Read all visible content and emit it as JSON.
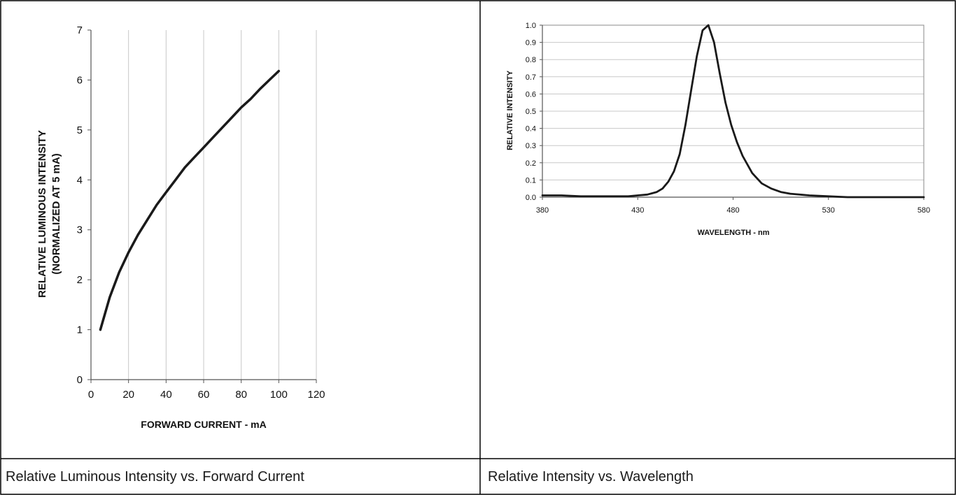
{
  "captions": {
    "left": "Relative Luminous Intensity vs. Forward Current",
    "right": "Relative Intensity vs. Wavelength"
  },
  "chart_data": [
    {
      "type": "line",
      "xlabel": "FORWARD CURRENT - mA",
      "ylabel_line1": "RELATIVE LUMINOUS INTENSITY",
      "ylabel_line2": "(NORMALIZED AT 5 mA)",
      "xlim": [
        0,
        120
      ],
      "ylim": [
        0,
        7
      ],
      "xticks": [
        "0",
        "20",
        "40",
        "60",
        "80",
        "100",
        "120"
      ],
      "yticks": [
        "0",
        "1",
        "2",
        "3",
        "4",
        "5",
        "6",
        "7"
      ],
      "grid": "vertical",
      "line_color": "#1a1a1a",
      "series": [
        {
          "x": [
            5,
            10,
            15,
            20,
            25,
            30,
            35,
            40,
            45,
            50,
            55,
            60,
            65,
            70,
            75,
            80,
            85,
            90,
            95,
            100
          ],
          "y": [
            1.0,
            1.65,
            2.15,
            2.55,
            2.9,
            3.2,
            3.5,
            3.75,
            4.0,
            4.25,
            4.45,
            4.65,
            4.85,
            5.05,
            5.25,
            5.45,
            5.62,
            5.82,
            6.0,
            6.18
          ]
        }
      ]
    },
    {
      "type": "line",
      "xlabel": "WAVELENGTH - nm",
      "ylabel": "RELATIVE INTENSITY",
      "xlim": [
        380,
        580
      ],
      "ylim": [
        0,
        1.0
      ],
      "xticks": [
        "380",
        "430",
        "480",
        "530",
        "580"
      ],
      "yticks": [
        "0.0",
        "0.1",
        "0.2",
        "0.3",
        "0.4",
        "0.5",
        "0.6",
        "0.7",
        "0.8",
        "0.9",
        "1.0"
      ],
      "grid": "horizontal",
      "line_color": "#1a1a1a",
      "series": [
        {
          "x": [
            380,
            390,
            400,
            410,
            420,
            425,
            430,
            435,
            440,
            443,
            446,
            449,
            452,
            455,
            458,
            461,
            464,
            467,
            470,
            473,
            476,
            479,
            482,
            485,
            490,
            495,
            500,
            505,
            510,
            520,
            530,
            540,
            560,
            580
          ],
          "y": [
            0.01,
            0.01,
            0.005,
            0.005,
            0.005,
            0.005,
            0.01,
            0.015,
            0.03,
            0.05,
            0.09,
            0.15,
            0.25,
            0.42,
            0.62,
            0.82,
            0.97,
            1.0,
            0.9,
            0.72,
            0.55,
            0.42,
            0.32,
            0.24,
            0.14,
            0.08,
            0.05,
            0.03,
            0.02,
            0.01,
            0.005,
            0.0,
            0.0,
            0.0
          ]
        }
      ]
    }
  ]
}
